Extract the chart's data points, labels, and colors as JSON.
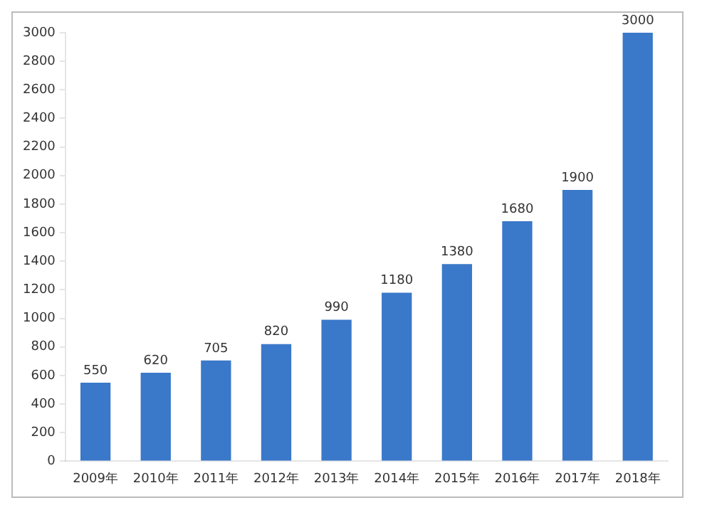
{
  "chart_data": {
    "type": "bar",
    "categories": [
      "2009年",
      "2010年",
      "2011年",
      "2012年",
      "2013年",
      "2014年",
      "2015年",
      "2016年",
      "2017年",
      "2018年"
    ],
    "values": [
      550,
      620,
      705,
      820,
      990,
      1180,
      1380,
      1680,
      1900,
      3000
    ],
    "color": "#3a78c9",
    "ylim": [
      0,
      3000
    ],
    "yticks": [
      0,
      200,
      400,
      600,
      800,
      1000,
      1200,
      1400,
      1600,
      1800,
      2000,
      2200,
      2400,
      2600,
      2800,
      3000
    ],
    "data_labels": true,
    "grid": false
  }
}
